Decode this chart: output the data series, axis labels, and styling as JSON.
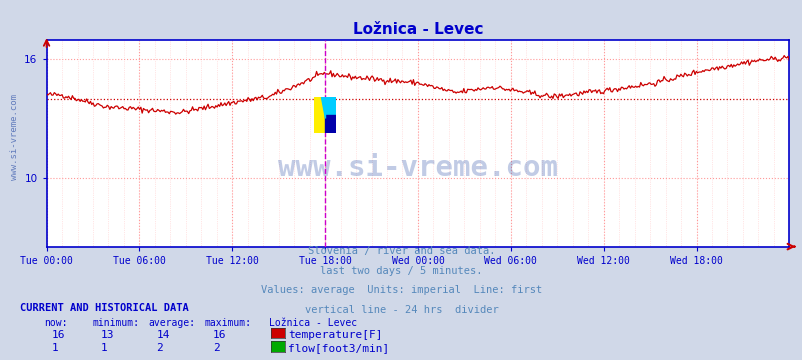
{
  "title": "Ložnica - Levec",
  "title_color": "#0000cc",
  "bg_color": "#d0d8e8",
  "plot_bg_color": "#ffffff",
  "x_labels": [
    "Tue 00:00",
    "Tue 06:00",
    "Tue 12:00",
    "Tue 18:00",
    "Wed 00:00",
    "Wed 06:00",
    "Wed 12:00",
    "Wed 18:00"
  ],
  "x_ticks_norm": [
    0.0,
    0.125,
    0.25,
    0.375,
    0.5,
    0.625,
    0.75,
    0.875
  ],
  "ylim": [
    6.5,
    17.0
  ],
  "yticks": [
    10,
    16
  ],
  "grid_color_major": "#ff9999",
  "grid_color_minor": "#ffcccc",
  "watermark_text": "www.si-vreme.com",
  "watermark_color": "#3355aa",
  "watermark_alpha": 0.3,
  "vline_color": "#cc00cc",
  "vline_pos": 0.375,
  "border_color": "#0000cc",
  "temp_color": "#cc0000",
  "flow_color": "#00aa00",
  "avg_line_color": "#cc0000",
  "avg_value": 14.0,
  "subtitle_lines": [
    "Slovenia / river and sea data.",
    "last two days / 5 minutes.",
    "Values: average  Units: imperial  Line: first",
    "vertical line - 24 hrs  divider"
  ],
  "subtitle_color": "#5588bb",
  "footer_label_color": "#0000cc",
  "legend_items": [
    {
      "label": "temperature[F]",
      "color": "#cc0000",
      "now": "16",
      "min": "13",
      "avg": "14",
      "max": "16"
    },
    {
      "label": "flow[foot3/min]",
      "color": "#00aa00",
      "now": "1",
      "min": "1",
      "avg": "2",
      "max": "2"
    }
  ],
  "footer_header": "CURRENT AND HISTORICAL DATA",
  "col_headers": [
    "now:",
    "minimum:",
    "average:",
    "maximum:",
    "Ložnica - Levec"
  ]
}
